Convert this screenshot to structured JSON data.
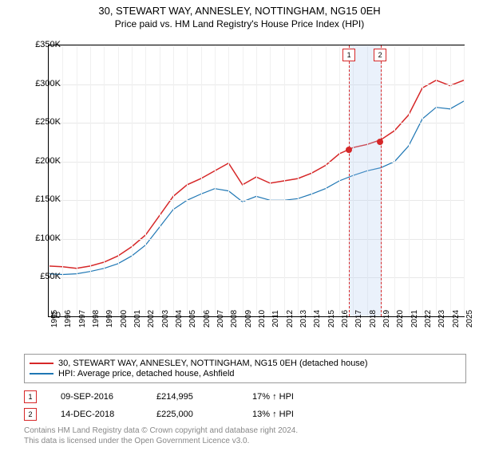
{
  "title": "30, STEWART WAY, ANNESLEY, NOTTINGHAM, NG15 0EH",
  "subtitle": "Price paid vs. HM Land Registry's House Price Index (HPI)",
  "chart": {
    "type": "line",
    "ylim": [
      0,
      350000
    ],
    "ytick_step": 50000,
    "yticks": [
      "£0",
      "£50K",
      "£100K",
      "£150K",
      "£200K",
      "£250K",
      "£300K",
      "£350K"
    ],
    "x_years": [
      1995,
      1996,
      1997,
      1998,
      1999,
      2000,
      2001,
      2002,
      2003,
      2004,
      2005,
      2006,
      2007,
      2008,
      2009,
      2010,
      2011,
      2012,
      2013,
      2014,
      2015,
      2016,
      2017,
      2018,
      2019,
      2020,
      2021,
      2022,
      2023,
      2024,
      2025
    ],
    "grid_color": "#e8e8e8",
    "background_color": "#ffffff",
    "series": [
      {
        "name": "price_paid",
        "color": "#d62728",
        "width": 1.5,
        "points": [
          [
            1995,
            65000
          ],
          [
            1996,
            64000
          ],
          [
            1997,
            62000
          ],
          [
            1998,
            65000
          ],
          [
            1999,
            70000
          ],
          [
            2000,
            78000
          ],
          [
            2001,
            90000
          ],
          [
            2002,
            105000
          ],
          [
            2003,
            130000
          ],
          [
            2004,
            155000
          ],
          [
            2005,
            170000
          ],
          [
            2006,
            178000
          ],
          [
            2007,
            188000
          ],
          [
            2008,
            198000
          ],
          [
            2009,
            170000
          ],
          [
            2010,
            180000
          ],
          [
            2011,
            172000
          ],
          [
            2012,
            175000
          ],
          [
            2013,
            178000
          ],
          [
            2014,
            185000
          ],
          [
            2015,
            195000
          ],
          [
            2016,
            210000
          ],
          [
            2017,
            218000
          ],
          [
            2018,
            222000
          ],
          [
            2019,
            228000
          ],
          [
            2020,
            240000
          ],
          [
            2021,
            260000
          ],
          [
            2022,
            295000
          ],
          [
            2023,
            305000
          ],
          [
            2024,
            298000
          ],
          [
            2025,
            305000
          ]
        ]
      },
      {
        "name": "hpi",
        "color": "#1f77b4",
        "width": 1.2,
        "points": [
          [
            1995,
            55000
          ],
          [
            1996,
            54000
          ],
          [
            1997,
            55000
          ],
          [
            1998,
            58000
          ],
          [
            1999,
            62000
          ],
          [
            2000,
            68000
          ],
          [
            2001,
            78000
          ],
          [
            2002,
            92000
          ],
          [
            2003,
            115000
          ],
          [
            2004,
            138000
          ],
          [
            2005,
            150000
          ],
          [
            2006,
            158000
          ],
          [
            2007,
            165000
          ],
          [
            2008,
            162000
          ],
          [
            2009,
            148000
          ],
          [
            2010,
            155000
          ],
          [
            2011,
            150000
          ],
          [
            2012,
            150000
          ],
          [
            2013,
            152000
          ],
          [
            2014,
            158000
          ],
          [
            2015,
            165000
          ],
          [
            2016,
            175000
          ],
          [
            2017,
            182000
          ],
          [
            2018,
            188000
          ],
          [
            2019,
            192000
          ],
          [
            2020,
            200000
          ],
          [
            2021,
            220000
          ],
          [
            2022,
            255000
          ],
          [
            2023,
            270000
          ],
          [
            2024,
            268000
          ],
          [
            2025,
            278000
          ]
        ]
      }
    ],
    "highlight_band": {
      "x_start": 2016.7,
      "x_end": 2018.95
    },
    "markers": [
      {
        "label": "1",
        "year": 2016.7,
        "marker_top_value": 346000
      },
      {
        "label": "2",
        "year": 2018.95,
        "marker_top_value": 346000
      }
    ],
    "transaction_dots": [
      {
        "year": 2016.7,
        "value": 214995
      },
      {
        "year": 2018.95,
        "value": 225000
      }
    ]
  },
  "legend": {
    "items": [
      {
        "color": "#d62728",
        "label": "30, STEWART WAY, ANNESLEY, NOTTINGHAM, NG15 0EH (detached house)"
      },
      {
        "color": "#1f77b4",
        "label": "HPI: Average price, detached house, Ashfield"
      }
    ]
  },
  "transactions": [
    {
      "marker": "1",
      "date": "09-SEP-2016",
      "price": "£214,995",
      "delta": "17% ↑ HPI"
    },
    {
      "marker": "2",
      "date": "14-DEC-2018",
      "price": "£225,000",
      "delta": "13% ↑ HPI"
    }
  ],
  "footer": {
    "line1": "Contains HM Land Registry data © Crown copyright and database right 2024.",
    "line2": "This data is licensed under the Open Government Licence v3.0."
  }
}
